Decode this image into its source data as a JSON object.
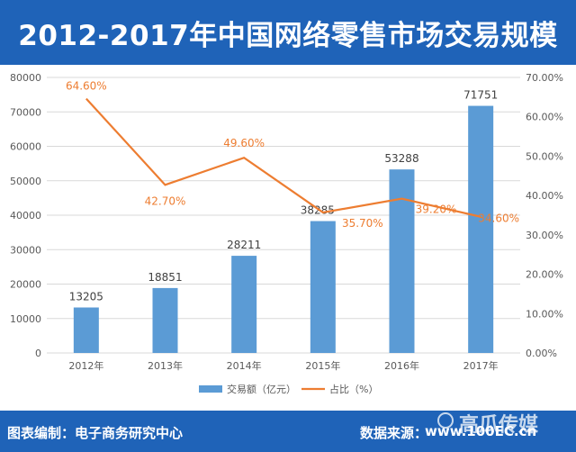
{
  "header": {
    "title": "2012-2017年中国网络零售市场交易规模"
  },
  "footer": {
    "left_text": "图表编制：电子商务研究中心",
    "source_label": "数据来源：",
    "source_url": "www.100EC.cn",
    "watermark": "高瓜传媒"
  },
  "colors": {
    "header_bg": "#1f63b8",
    "bar": "#5b9bd5",
    "line": "#ed7d31",
    "grid": "#d9d9d9",
    "axis_text": "#595959"
  },
  "chart_data": {
    "type": "bar",
    "categories": [
      "2012年",
      "2013年",
      "2014年",
      "2015年",
      "2016年",
      "2017年"
    ],
    "series": [
      {
        "name": "交易额（亿元）",
        "type": "bar",
        "axis": "left",
        "values": [
          13205,
          18851,
          28211,
          38285,
          53288,
          71751
        ],
        "labels": [
          "13205",
          "18851",
          "28211",
          "38285",
          "53288",
          "71751"
        ]
      },
      {
        "name": "占比（%）",
        "type": "line",
        "axis": "right",
        "values": [
          64.6,
          42.7,
          49.6,
          35.7,
          39.2,
          34.6
        ],
        "labels": [
          "64.60%",
          "42.70%",
          "49.60%",
          "35.70%",
          "39.20%",
          "34.60%"
        ]
      }
    ],
    "y_left": {
      "range": [
        0,
        80000
      ],
      "ticks": [
        "0",
        "10000",
        "20000",
        "30000",
        "40000",
        "50000",
        "60000",
        "70000",
        "80000"
      ]
    },
    "y_right": {
      "range": [
        0,
        70
      ],
      "ticks": [
        "0.00%",
        "10.00%",
        "20.00%",
        "30.00%",
        "40.00%",
        "50.00%",
        "60.00%",
        "70.00%"
      ]
    },
    "grid": true,
    "legend_position": "bottom"
  }
}
